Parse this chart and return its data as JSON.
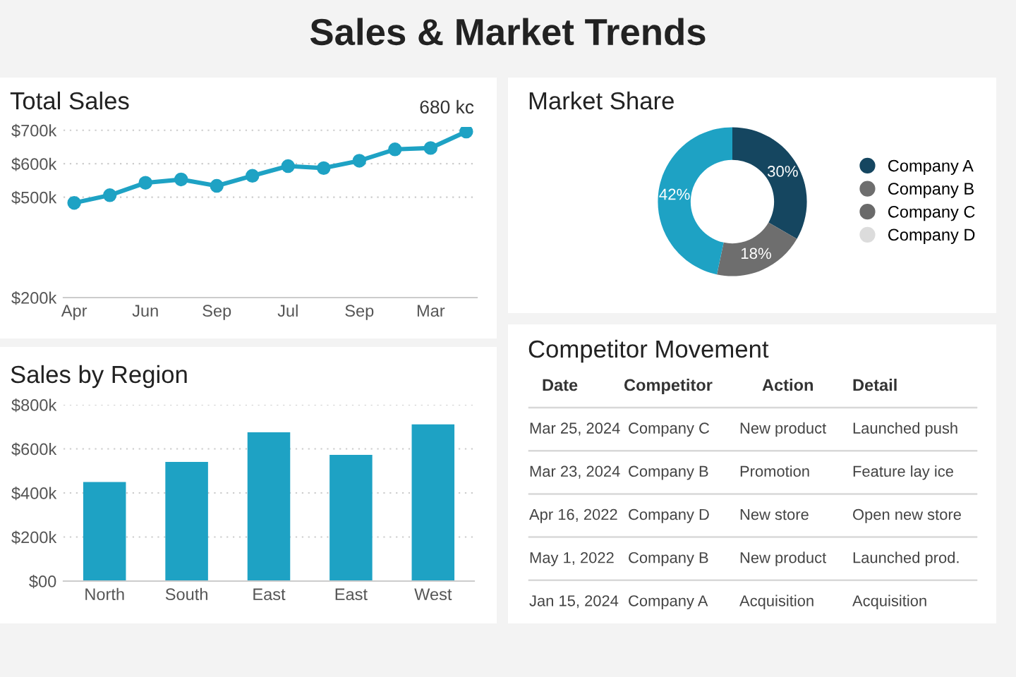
{
  "chart_data": [
    {
      "type": "other",
      "title": "Sales & Market Trends"
    },
    {
      "type": "line",
      "title": "Total Sales",
      "annotations": [
        "680 kc"
      ],
      "marker": "circle",
      "grid": "y",
      "categories": [
        "Apr",
        null,
        "Jun",
        null,
        "Sep",
        null,
        "Jul",
        null,
        "Sep",
        null,
        "Mar",
        null
      ],
      "series": [
        {
          "color": "#1ea2c4",
          "values": [
            483,
            506,
            543,
            553,
            534,
            564,
            593,
            587,
            609,
            643,
            647,
            696
          ]
        }
      ],
      "ylim": [
        200,
        710
      ],
      "yticks": [
        {
          "value": 200,
          "label": "$200k"
        },
        {
          "value": 500,
          "label": "$500k"
        },
        {
          "value": 600,
          "label": "$600k"
        },
        {
          "value": 700,
          "label": "$700k"
        }
      ]
    },
    {
      "type": "bar",
      "title": "Sales by Region",
      "grid": "y",
      "categories": [
        "North",
        "South",
        "East",
        "East",
        "West"
      ],
      "series": [
        {
          "color": "#1ea2c4",
          "values": [
            450,
            541,
            675,
            573,
            711
          ]
        }
      ],
      "ylim": [
        0,
        800
      ],
      "yticks": [
        {
          "value": 0,
          "label": "$00"
        },
        {
          "value": 200,
          "label": "$200k"
        },
        {
          "value": 400,
          "label": "$400k"
        },
        {
          "value": 600,
          "label": "$600k"
        },
        {
          "value": 800,
          "label": "$800k"
        }
      ]
    },
    {
      "type": "donut",
      "title": "Market Share",
      "legend": "right",
      "categories": [
        "Company A",
        "Company B",
        "Company C",
        "Company D",
        null
      ],
      "values": [
        30,
        18,
        0,
        0,
        42
      ],
      "colors": [
        "#154660",
        "#6e6e6e",
        "#6a6a6a",
        "#dcdcdc",
        "#1ea2c4"
      ],
      "value_labels": [
        "30%",
        "18%",
        null,
        null,
        "42%"
      ]
    },
    {
      "type": "other",
      "title": "Competitor Movement",
      "categories": [
        "Date",
        "Competitor",
        "Action",
        "Detail"
      ],
      "annotations": [
        "Mar 25, 2024",
        "Company C",
        "New product",
        "Launched push",
        "Mar 23, 2024",
        "Company B",
        "Promotion",
        "Feature lay ice",
        "Apr 16, 2022",
        "Company D",
        "New store",
        "Open new store",
        "May 1, 2022",
        "Company B",
        "New product",
        "Launched prod.",
        "Jan 15, 2024",
        "Company A",
        "Acquisition",
        "Acquisition"
      ]
    }
  ]
}
